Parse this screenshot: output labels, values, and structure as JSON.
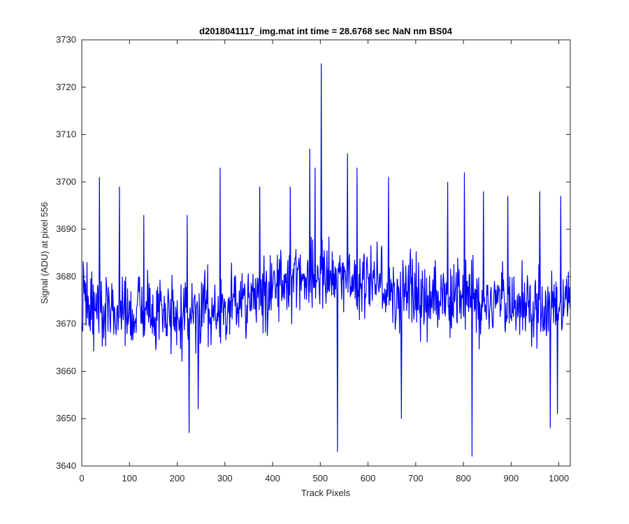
{
  "chart_data": {
    "type": "line",
    "title": "d2018041117_img.mat int time = 28.6768 sec  NaN nm BS04",
    "xlabel": "Track Pixels",
    "ylabel": "Signal (ADU) at pixel 556",
    "xlim": [
      0,
      1024
    ],
    "ylim": [
      3640,
      3730
    ],
    "xticks": [
      0,
      100,
      200,
      300,
      400,
      500,
      600,
      700,
      800,
      900,
      1000
    ],
    "yticks": [
      3640,
      3650,
      3660,
      3670,
      3680,
      3690,
      3700,
      3710,
      3720,
      3730
    ],
    "grid": false,
    "box": true,
    "series": [
      {
        "color": "#0000ff",
        "x_start": 1,
        "x_step": 1,
        "baseline": [
          [
            0,
            3674
          ],
          [
            150,
            3672
          ],
          [
            300,
            3673
          ],
          [
            400,
            3677
          ],
          [
            450,
            3680
          ],
          [
            500,
            3681
          ],
          [
            600,
            3679
          ],
          [
            700,
            3676
          ],
          [
            800,
            3675
          ],
          [
            900,
            3674
          ],
          [
            1024,
            3674
          ]
        ],
        "noise_amplitude": 7,
        "spikes": [
          {
            "x": 37,
            "y": 3701
          },
          {
            "x": 79,
            "y": 3699
          },
          {
            "x": 130,
            "y": 3693
          },
          {
            "x": 221,
            "y": 3693
          },
          {
            "x": 225,
            "y": 3647
          },
          {
            "x": 244,
            "y": 3652
          },
          {
            "x": 290,
            "y": 3703
          },
          {
            "x": 373,
            "y": 3699
          },
          {
            "x": 437,
            "y": 3699
          },
          {
            "x": 478,
            "y": 3707
          },
          {
            "x": 489,
            "y": 3703
          },
          {
            "x": 502,
            "y": 3725
          },
          {
            "x": 536,
            "y": 3643
          },
          {
            "x": 557,
            "y": 3706
          },
          {
            "x": 577,
            "y": 3703
          },
          {
            "x": 643,
            "y": 3701
          },
          {
            "x": 670,
            "y": 3650
          },
          {
            "x": 767,
            "y": 3700
          },
          {
            "x": 802,
            "y": 3702
          },
          {
            "x": 818,
            "y": 3642
          },
          {
            "x": 842,
            "y": 3698
          },
          {
            "x": 893,
            "y": 3697
          },
          {
            "x": 960,
            "y": 3698
          },
          {
            "x": 982,
            "y": 3648
          },
          {
            "x": 997,
            "y": 3651
          },
          {
            "x": 1004,
            "y": 3697
          }
        ]
      }
    ]
  }
}
